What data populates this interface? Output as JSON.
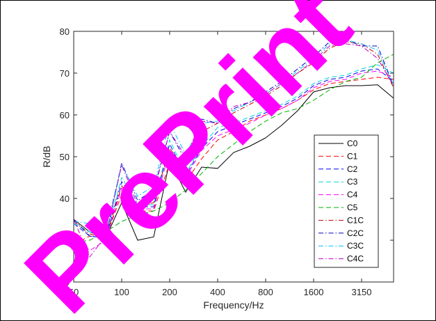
{
  "chart_data": {
    "type": "line",
    "xlabel": "Frequency/Hz",
    "ylabel": "R/dB",
    "ylim": [
      20,
      80
    ],
    "y_ticks": [
      "20",
      "30",
      "40",
      "50",
      "60",
      "70",
      "80"
    ],
    "x": [
      "50",
      "63",
      "80",
      "100",
      "125",
      "160",
      "200",
      "250",
      "315",
      "400",
      "500",
      "630",
      "800",
      "1000",
      "1250",
      "1600",
      "2000",
      "2500",
      "3150",
      "4000",
      "5000"
    ],
    "x_tick_labels": [
      "50",
      "100",
      "200",
      "400",
      "800",
      "1600",
      "3150"
    ],
    "grid": false,
    "legend_position": "right",
    "series": [
      {
        "name": "C0",
        "color": "#000000",
        "dash": "solid",
        "values": [
          35,
          32,
          30.5,
          39,
          30,
          30.8,
          49,
          41.5,
          47.5,
          47.2,
          51,
          52.5,
          54.5,
          57.5,
          61,
          65.5,
          66.5,
          67,
          67,
          67.2,
          64
        ]
      },
      {
        "name": "C1",
        "color": "#ff0000",
        "dash": "dashed",
        "values": [
          29,
          31,
          30.5,
          41,
          37,
          37,
          48.5,
          44,
          49.5,
          54,
          56,
          58.5,
          60,
          61.5,
          63.5,
          66,
          67.5,
          68,
          68.5,
          69,
          68.5
        ]
      },
      {
        "name": "C2",
        "color": "#0000ff",
        "dash": "dashed",
        "values": [
          34,
          31,
          30.5,
          44,
          38,
          38,
          53,
          45.5,
          52,
          56,
          57.5,
          59,
          60.5,
          62,
          64,
          67,
          68.5,
          69,
          70.5,
          71,
          68
        ]
      },
      {
        "name": "C3",
        "color": "#00d8d8",
        "dash": "dashed",
        "values": [
          34,
          32,
          31,
          45,
          38.5,
          38.5,
          54,
          46,
          52.5,
          57,
          58,
          59.5,
          61,
          62.5,
          64.5,
          67.5,
          69,
          69.5,
          71,
          72,
          70
        ]
      },
      {
        "name": "C4",
        "color": "#ff00ff",
        "dash": "dashed",
        "values": [
          31,
          27.5,
          30,
          42.5,
          37.5,
          37.5,
          51.5,
          45,
          51.5,
          55,
          56.5,
          58,
          60,
          61.5,
          63.5,
          66.5,
          68,
          68.5,
          70,
          70.5,
          69
        ]
      },
      {
        "name": "C5",
        "color": "#00b000",
        "dash": "dashed",
        "values": [
          29.5,
          30,
          32,
          34.5,
          36,
          37,
          39,
          42,
          46,
          50,
          53,
          56,
          58.5,
          60.5,
          61.5,
          63.5,
          66,
          68,
          69,
          72.5,
          74.5
        ]
      },
      {
        "name": "C1C",
        "color": "#c00000",
        "dash": "dash-dot",
        "values": [
          34.5,
          31.5,
          30.5,
          43,
          38,
          39,
          52,
          47,
          56,
          58,
          60.5,
          62.5,
          64.5,
          67,
          70,
          72.5,
          76,
          77.5,
          77,
          74.5,
          66.5
        ]
      },
      {
        "name": "C2C",
        "color": "#0000c0",
        "dash": "dash-dot",
        "values": [
          35,
          31,
          30.5,
          48.5,
          39.5,
          42,
          56,
          49,
          59,
          58,
          61.5,
          63,
          65.5,
          68,
          71,
          74,
          77.5,
          78,
          76.5,
          76.5,
          67
        ]
      },
      {
        "name": "C3C",
        "color": "#00c0ff",
        "dash": "dash-dot",
        "values": [
          34.5,
          34,
          32.5,
          48,
          40.5,
          43,
          58,
          50.5,
          58,
          58.5,
          61,
          63,
          65,
          67.5,
          70.5,
          73.5,
          77,
          78,
          77,
          75.5,
          67
        ]
      },
      {
        "name": "C4C",
        "color": "#c000c0",
        "dash": "dash-dot",
        "values": [
          35,
          26,
          31,
          48,
          38.5,
          41.5,
          56,
          50,
          58.5,
          58,
          62,
          63,
          65,
          67.5,
          70,
          73,
          76.5,
          77,
          76.5,
          73.5,
          67
        ]
      }
    ]
  },
  "watermark": "PrePrint"
}
